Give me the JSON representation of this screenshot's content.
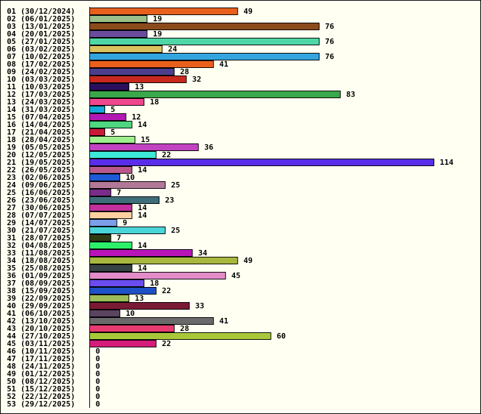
{
  "chart_data": {
    "type": "bar",
    "orientation": "horizontal",
    "title": "",
    "xlabel": "",
    "ylabel": "",
    "grid": false,
    "legend": "none",
    "categories": [
      "01 (30/12/2024)",
      "02 (06/01/2025)",
      "03 (13/01/2025)",
      "04 (20/01/2025)",
      "05 (27/01/2025)",
      "06 (03/02/2025)",
      "07 (10/02/2025)",
      "08 (17/02/2025)",
      "09 (24/02/2025)",
      "10 (03/03/2025)",
      "11 (10/03/2025)",
      "12 (17/03/2025)",
      "13 (24/03/2025)",
      "14 (31/03/2025)",
      "15 (07/04/2025)",
      "16 (14/04/2025)",
      "17 (21/04/2025)",
      "18 (28/04/2025)",
      "19 (05/05/2025)",
      "20 (12/05/2025)",
      "21 (19/05/2025)",
      "22 (26/05/2025)",
      "23 (02/06/2025)",
      "24 (09/06/2025)",
      "25 (16/06/2025)",
      "26 (23/06/2025)",
      "27 (30/06/2025)",
      "28 (07/07/2025)",
      "29 (14/07/2025)",
      "30 (21/07/2025)",
      "31 (28/07/2025)",
      "32 (04/08/2025)",
      "33 (11/08/2025)",
      "34 (18/08/2025)",
      "35 (25/08/2025)",
      "36 (01/09/2025)",
      "37 (08/09/2025)",
      "38 (15/09/2025)",
      "39 (22/09/2025)",
      "40 (29/09/2025)",
      "41 (06/10/2025)",
      "42 (13/10/2025)",
      "43 (20/10/2025)",
      "44 (27/10/2025)",
      "45 (03/11/2025)",
      "46 (10/11/2025)",
      "47 (17/11/2025)",
      "48 (24/11/2025)",
      "49 (01/12/2025)",
      "50 (08/12/2025)",
      "51 (15/12/2025)",
      "52 (22/12/2025)",
      "53 (29/12/2025)"
    ],
    "values": [
      49,
      19,
      76,
      19,
      76,
      24,
      76,
      41,
      28,
      32,
      13,
      83,
      18,
      5,
      12,
      14,
      5,
      15,
      36,
      22,
      114,
      14,
      10,
      25,
      7,
      23,
      14,
      14,
      9,
      25,
      7,
      14,
      34,
      49,
      14,
      45,
      18,
      22,
      13,
      33,
      10,
      41,
      28,
      60,
      22,
      0,
      0,
      0,
      0,
      0,
      0,
      0,
      0
    ],
    "colors": [
      "#e8601c",
      "#9bbf86",
      "#8b4a1c",
      "#6a4c9c",
      "#4fd6a6",
      "#d9c25e",
      "#33a4de",
      "#e8601c",
      "#4b3e8c",
      "#c9281e",
      "#2a0f5e",
      "#3aa84a",
      "#f0468c",
      "#16a8d8",
      "#b219b4",
      "#4fd680",
      "#c91c34",
      "#9ef08c",
      "#c243c2",
      "#3ee8d8",
      "#5a2ee8",
      "#b8588c",
      "#1e5ad6",
      "#b27898",
      "#7a2c8a",
      "#3e6e7a",
      "#c2309c",
      "#fcd0a0",
      "#7a9ee8",
      "#4ad6d8",
      "#2e3a12",
      "#2cf06a",
      "#b814b8",
      "#a8b83e",
      "#374244",
      "#e28cc8",
      "#6a4cf0",
      "#1e50c8",
      "#9cbc5a",
      "#7a1a34",
      "#5a4460",
      "#6a6a6a",
      "#e83c70",
      "#a8c83a",
      "#d41c7a",
      "#cccccc",
      "#cccccc",
      "#cccccc",
      "#cccccc",
      "#cccccc",
      "#cccccc",
      "#cccccc",
      "#cccccc"
    ],
    "xlim": [
      0,
      114
    ]
  }
}
